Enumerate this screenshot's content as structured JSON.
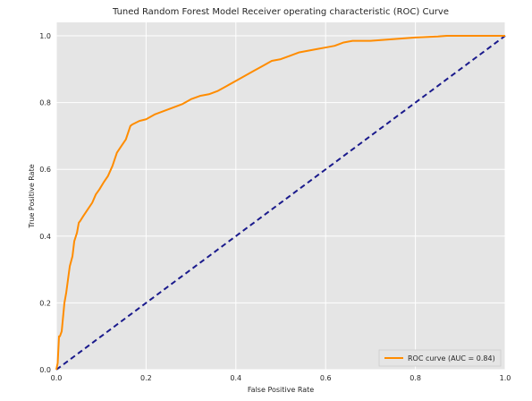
{
  "chart_data": {
    "type": "line",
    "title": "Tuned Random Forest Model Receiver operating characteristic (ROC) Curve",
    "xlabel": "False Positive Rate",
    "ylabel": "True Positive Rate",
    "xlim": [
      0.0,
      1.0
    ],
    "ylim": [
      0.0,
      1.0
    ],
    "grid": true,
    "xticks": [
      "0.0",
      "0.2",
      "0.4",
      "0.6",
      "0.8",
      "1.0"
    ],
    "yticks": [
      "0.0",
      "0.2",
      "0.4",
      "0.6",
      "0.8",
      "1.0"
    ],
    "legend": {
      "position": "lower-right",
      "entries": [
        "ROC curve (AUC = 0.84)"
      ]
    },
    "series": [
      {
        "name": "ROC curve (AUC = 0.84)",
        "color": "#ff8c00",
        "style": "solid",
        "x": [
          0.0,
          0.003,
          0.006,
          0.008,
          0.012,
          0.018,
          0.022,
          0.026,
          0.03,
          0.036,
          0.04,
          0.046,
          0.05,
          0.053,
          0.06,
          0.07,
          0.08,
          0.088,
          0.096,
          0.105,
          0.115,
          0.125,
          0.135,
          0.145,
          0.155,
          0.16,
          0.165,
          0.17,
          0.185,
          0.2,
          0.22,
          0.24,
          0.26,
          0.28,
          0.3,
          0.32,
          0.34,
          0.36,
          0.38,
          0.4,
          0.42,
          0.44,
          0.46,
          0.48,
          0.5,
          0.52,
          0.54,
          0.56,
          0.58,
          0.6,
          0.62,
          0.64,
          0.66,
          0.7,
          0.75,
          0.8,
          0.85,
          0.87,
          0.9,
          1.0
        ],
        "y": [
          0.0,
          0.02,
          0.1,
          0.1,
          0.115,
          0.2,
          0.23,
          0.27,
          0.31,
          0.34,
          0.385,
          0.41,
          0.44,
          0.445,
          0.46,
          0.48,
          0.5,
          0.525,
          0.54,
          0.56,
          0.58,
          0.61,
          0.65,
          0.67,
          0.69,
          0.71,
          0.73,
          0.735,
          0.745,
          0.75,
          0.765,
          0.775,
          0.785,
          0.795,
          0.81,
          0.82,
          0.825,
          0.835,
          0.85,
          0.865,
          0.88,
          0.895,
          0.91,
          0.925,
          0.93,
          0.94,
          0.95,
          0.955,
          0.96,
          0.965,
          0.97,
          0.98,
          0.985,
          0.985,
          0.99,
          0.995,
          0.998,
          1.0,
          1.0,
          1.0
        ]
      },
      {
        "name": "",
        "color": "#1a1a8c",
        "style": "dashed",
        "x": [
          0.0,
          1.0
        ],
        "y": [
          0.0,
          1.0
        ]
      }
    ]
  },
  "colors": {
    "plot_background": "#e5e5e5",
    "grid": "#ffffff",
    "roc_line": "#ff8c00",
    "diagonal_line": "#1a1a8c"
  }
}
